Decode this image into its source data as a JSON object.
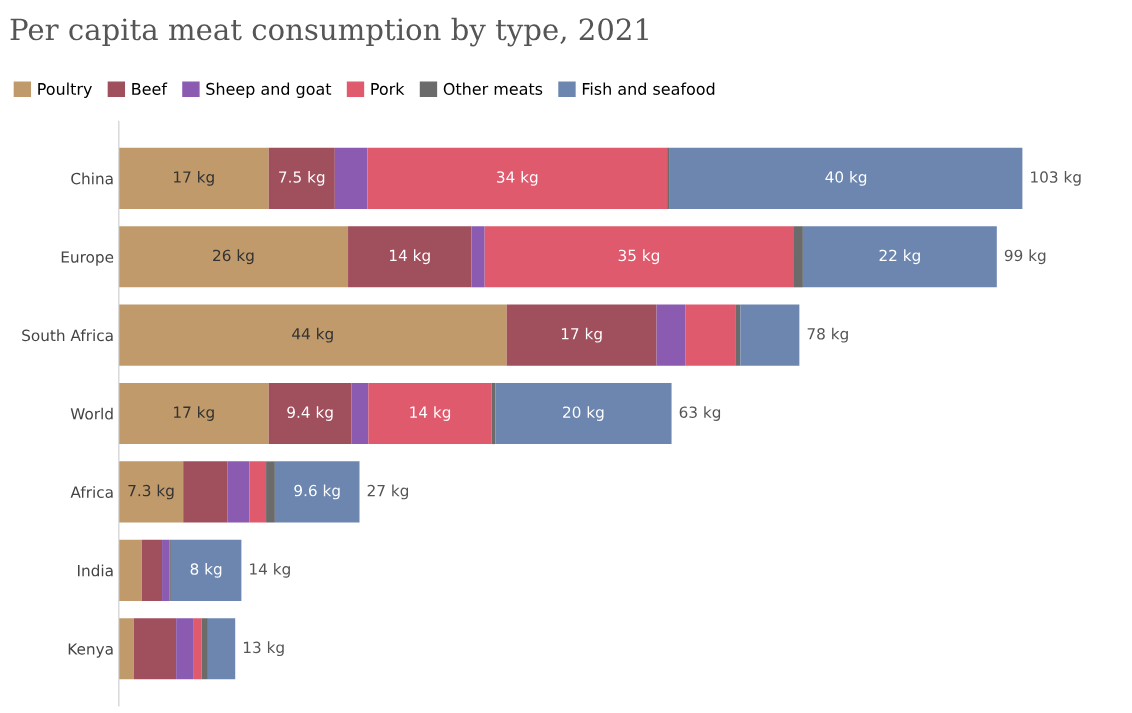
{
  "chart_data": {
    "type": "bar",
    "orientation": "horizontal",
    "stacked": true,
    "tick_labels": "y",
    "title": "Per capita meat consumption by type, 2021",
    "legend": "top left",
    "categories": [
      "China",
      "Europe",
      "South Africa",
      "World",
      "Africa",
      "India",
      "Kenya"
    ],
    "series": [
      {
        "name": "Poultry",
        "color": "#c09a6b",
        "values": [
          17,
          26,
          44,
          17,
          7.3,
          2.6,
          1.7
        ],
        "value_labels": [
          "17 kg",
          "26 kg",
          "44 kg",
          "17 kg",
          "7.3 kg",
          null,
          null
        ]
      },
      {
        "name": "Beef",
        "color": "#a04f5c",
        "values": [
          7.5,
          14,
          17,
          9.4,
          5.0,
          2.3,
          4.8
        ],
        "value_labels": [
          "7.5 kg",
          "14 kg",
          "17 kg",
          "9.4 kg",
          null,
          null,
          null
        ]
      },
      {
        "name": "Sheep and goat",
        "color": "#8a5bb0",
        "values": [
          3.7,
          1.5,
          3.3,
          1.9,
          2.5,
          0.8,
          2.0
        ],
        "value_labels": [
          null,
          null,
          null,
          null,
          null,
          null,
          null
        ]
      },
      {
        "name": "Pork",
        "color": "#e05a6e",
        "values": [
          34,
          35,
          5.7,
          14,
          1.9,
          0.1,
          0.9
        ],
        "value_labels": [
          "34 kg",
          "35 kg",
          null,
          "14 kg",
          null,
          null,
          null
        ]
      },
      {
        "name": "Other meats",
        "color": "#6b6b6b",
        "values": [
          0.3,
          1.1,
          0.5,
          0.4,
          1.0,
          0.1,
          0.7
        ],
        "value_labels": [
          null,
          null,
          null,
          null,
          null,
          null,
          null
        ]
      },
      {
        "name": "Fish and seafood",
        "color": "#6c86b0",
        "values": [
          40,
          22,
          6.7,
          20,
          9.6,
          8,
          3.1
        ],
        "value_labels": [
          "40 kg",
          "22 kg",
          null,
          "20 kg",
          "9.6 kg",
          "8 kg",
          null
        ]
      }
    ],
    "totals": [
      "103 kg",
      "99 kg",
      "78 kg",
      "63 kg",
      "27 kg",
      "14 kg",
      "13 kg"
    ]
  }
}
